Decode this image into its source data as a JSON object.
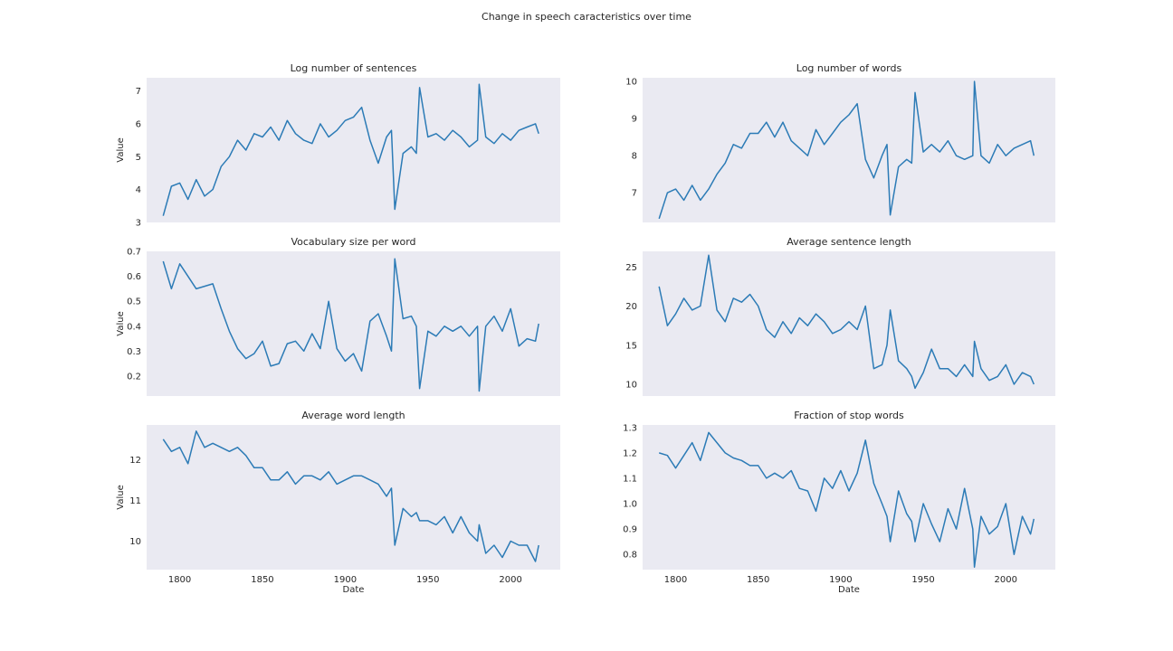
{
  "figure": {
    "suptitle": "Change in speech caracteristics over time",
    "colors": {
      "axes_bg": "#eaeaf2",
      "line": "#2c7bb6",
      "text": "#262626"
    }
  },
  "chart_data": [
    {
      "type": "line",
      "title": "Log number of sentences",
      "xlabel": "",
      "ylabel": "Value",
      "xlim": [
        1780,
        2030
      ],
      "ylim": [
        3,
        7.4
      ],
      "yticks": [
        3,
        4,
        5,
        6,
        7
      ],
      "yticklabels": [
        "3",
        "4",
        "5",
        "6",
        "7"
      ],
      "xticks": [
        1800,
        1850,
        1900,
        1950,
        2000
      ],
      "xticklabels": [],
      "grid": false,
      "x": [
        1790,
        1795,
        1800,
        1805,
        1810,
        1815,
        1820,
        1825,
        1830,
        1835,
        1840,
        1845,
        1850,
        1855,
        1860,
        1865,
        1870,
        1875,
        1880,
        1885,
        1890,
        1895,
        1900,
        1905,
        1910,
        1915,
        1920,
        1925,
        1928,
        1930,
        1935,
        1940,
        1943,
        1945,
        1950,
        1955,
        1960,
        1965,
        1970,
        1975,
        1980,
        1981,
        1985,
        1990,
        1995,
        2000,
        2005,
        2010,
        2015,
        2017
      ],
      "y": [
        3.2,
        4.1,
        4.2,
        3.7,
        4.3,
        3.8,
        4.0,
        4.7,
        5.0,
        5.5,
        5.2,
        5.7,
        5.6,
        5.9,
        5.5,
        6.1,
        5.7,
        5.5,
        5.4,
        6.0,
        5.6,
        5.8,
        6.1,
        6.2,
        6.5,
        5.5,
        4.8,
        5.6,
        5.8,
        3.4,
        5.1,
        5.3,
        5.1,
        7.1,
        5.6,
        5.7,
        5.5,
        5.8,
        5.6,
        5.3,
        5.5,
        7.2,
        5.6,
        5.4,
        5.7,
        5.5,
        5.8,
        5.9,
        6.0,
        5.7
      ]
    },
    {
      "type": "line",
      "title": "Log number of words",
      "xlabel": "",
      "ylabel": "",
      "xlim": [
        1780,
        2030
      ],
      "ylim": [
        6.2,
        10.1
      ],
      "yticks": [
        7,
        8,
        9,
        10
      ],
      "yticklabels": [
        "7",
        "8",
        "9",
        "10"
      ],
      "xticks": [
        1800,
        1850,
        1900,
        1950,
        2000
      ],
      "xticklabels": [],
      "grid": false,
      "x": [
        1790,
        1795,
        1800,
        1805,
        1810,
        1815,
        1820,
        1825,
        1830,
        1835,
        1840,
        1845,
        1850,
        1855,
        1860,
        1865,
        1870,
        1875,
        1880,
        1885,
        1890,
        1895,
        1900,
        1905,
        1910,
        1915,
        1920,
        1925,
        1928,
        1930,
        1935,
        1940,
        1943,
        1945,
        1950,
        1955,
        1960,
        1965,
        1970,
        1975,
        1980,
        1981,
        1985,
        1990,
        1995,
        2000,
        2005,
        2010,
        2015,
        2017
      ],
      "y": [
        6.3,
        7.0,
        7.1,
        6.8,
        7.2,
        6.8,
        7.1,
        7.5,
        7.8,
        8.3,
        8.2,
        8.6,
        8.6,
        8.9,
        8.5,
        8.9,
        8.4,
        8.2,
        8.0,
        8.7,
        8.3,
        8.6,
        8.9,
        9.1,
        9.4,
        7.9,
        7.4,
        8.0,
        8.3,
        6.4,
        7.7,
        7.9,
        7.8,
        9.7,
        8.1,
        8.3,
        8.1,
        8.4,
        8.0,
        7.9,
        8.0,
        10.0,
        8.0,
        7.8,
        8.3,
        8.0,
        8.2,
        8.3,
        8.4,
        8.0
      ]
    },
    {
      "type": "line",
      "title": "Vocabulary size per word",
      "xlabel": "",
      "ylabel": "Value",
      "xlim": [
        1780,
        2030
      ],
      "ylim": [
        0.12,
        0.7
      ],
      "yticks": [
        0.2,
        0.3,
        0.4,
        0.5,
        0.6,
        0.7
      ],
      "yticklabels": [
        "0.2",
        "0.3",
        "0.4",
        "0.5",
        "0.6",
        "0.7"
      ],
      "xticks": [
        1800,
        1850,
        1900,
        1950,
        2000
      ],
      "xticklabels": [],
      "grid": false,
      "x": [
        1790,
        1795,
        1800,
        1805,
        1810,
        1815,
        1820,
        1825,
        1830,
        1835,
        1840,
        1845,
        1850,
        1855,
        1860,
        1865,
        1870,
        1875,
        1880,
        1885,
        1890,
        1895,
        1900,
        1905,
        1910,
        1915,
        1920,
        1925,
        1928,
        1930,
        1935,
        1940,
        1943,
        1945,
        1950,
        1955,
        1960,
        1965,
        1970,
        1975,
        1980,
        1981,
        1985,
        1990,
        1995,
        2000,
        2005,
        2010,
        2015,
        2017
      ],
      "y": [
        0.66,
        0.55,
        0.65,
        0.6,
        0.55,
        0.56,
        0.57,
        0.47,
        0.38,
        0.31,
        0.27,
        0.29,
        0.34,
        0.24,
        0.25,
        0.33,
        0.34,
        0.3,
        0.37,
        0.31,
        0.5,
        0.31,
        0.26,
        0.29,
        0.22,
        0.42,
        0.45,
        0.36,
        0.3,
        0.67,
        0.43,
        0.44,
        0.4,
        0.15,
        0.38,
        0.36,
        0.4,
        0.38,
        0.4,
        0.36,
        0.4,
        0.14,
        0.4,
        0.44,
        0.38,
        0.47,
        0.32,
        0.35,
        0.34,
        0.41
      ]
    },
    {
      "type": "line",
      "title": "Average sentence length",
      "xlabel": "",
      "ylabel": "",
      "xlim": [
        1780,
        2030
      ],
      "ylim": [
        8.5,
        27
      ],
      "yticks": [
        10,
        15,
        20,
        25
      ],
      "yticklabels": [
        "10",
        "15",
        "20",
        "25"
      ],
      "xticks": [
        1800,
        1850,
        1900,
        1950,
        2000
      ],
      "xticklabels": [],
      "grid": false,
      "x": [
        1790,
        1795,
        1800,
        1805,
        1810,
        1815,
        1820,
        1825,
        1830,
        1835,
        1840,
        1845,
        1850,
        1855,
        1860,
        1865,
        1870,
        1875,
        1880,
        1885,
        1890,
        1895,
        1900,
        1905,
        1910,
        1915,
        1920,
        1925,
        1928,
        1930,
        1935,
        1940,
        1943,
        1945,
        1950,
        1955,
        1960,
        1965,
        1970,
        1975,
        1980,
        1981,
        1985,
        1990,
        1995,
        2000,
        2005,
        2010,
        2015,
        2017
      ],
      "y": [
        22.5,
        17.5,
        19.0,
        21.0,
        19.5,
        20.0,
        26.5,
        19.5,
        18.0,
        21.0,
        20.5,
        21.5,
        20.0,
        17.0,
        16.0,
        18.0,
        16.5,
        18.5,
        17.5,
        19.0,
        18.0,
        16.5,
        17.0,
        18.0,
        17.0,
        20.0,
        12.0,
        12.5,
        15.0,
        19.5,
        13.0,
        12.0,
        11.0,
        9.5,
        11.5,
        14.5,
        12.0,
        12.0,
        11.0,
        12.5,
        11.0,
        15.5,
        12.0,
        10.5,
        11.0,
        12.5,
        10.0,
        11.5,
        11.0,
        10.0
      ]
    },
    {
      "type": "line",
      "title": "Average word length",
      "xlabel": "Date",
      "ylabel": "Value",
      "xlim": [
        1780,
        2030
      ],
      "ylim": [
        9.3,
        12.85
      ],
      "yticks": [
        10,
        11,
        12
      ],
      "yticklabels": [
        "10",
        "11",
        "12"
      ],
      "xticks": [
        1800,
        1850,
        1900,
        1950,
        2000
      ],
      "xticklabels": [
        "1800",
        "1850",
        "1900",
        "1950",
        "2000"
      ],
      "grid": false,
      "x": [
        1790,
        1795,
        1800,
        1805,
        1810,
        1815,
        1820,
        1825,
        1830,
        1835,
        1840,
        1845,
        1850,
        1855,
        1860,
        1865,
        1870,
        1875,
        1880,
        1885,
        1890,
        1895,
        1900,
        1905,
        1910,
        1915,
        1920,
        1925,
        1928,
        1930,
        1935,
        1940,
        1943,
        1945,
        1950,
        1955,
        1960,
        1965,
        1970,
        1975,
        1980,
        1981,
        1985,
        1990,
        1995,
        2000,
        2005,
        2010,
        2015,
        2017
      ],
      "y": [
        12.5,
        12.2,
        12.3,
        11.9,
        12.7,
        12.3,
        12.4,
        12.3,
        12.2,
        12.3,
        12.1,
        11.8,
        11.8,
        11.5,
        11.5,
        11.7,
        11.4,
        11.6,
        11.6,
        11.5,
        11.7,
        11.4,
        11.5,
        11.6,
        11.6,
        11.5,
        11.4,
        11.1,
        11.3,
        9.9,
        10.8,
        10.6,
        10.7,
        10.5,
        10.5,
        10.4,
        10.6,
        10.2,
        10.6,
        10.2,
        10.0,
        10.4,
        9.7,
        9.9,
        9.6,
        10.0,
        9.9,
        9.9,
        9.5,
        9.9
      ]
    },
    {
      "type": "line",
      "title": "Fraction of stop words",
      "xlabel": "Date",
      "ylabel": "",
      "xlim": [
        1780,
        2030
      ],
      "ylim": [
        0.74,
        1.31
      ],
      "yticks": [
        0.8,
        0.9,
        1.0,
        1.1,
        1.2,
        1.3
      ],
      "yticklabels": [
        "0.8",
        "0.9",
        "1.0",
        "1.1",
        "1.2",
        "1.3"
      ],
      "xticks": [
        1800,
        1850,
        1900,
        1950,
        2000
      ],
      "xticklabels": [
        "1800",
        "1850",
        "1900",
        "1950",
        "2000"
      ],
      "grid": false,
      "x": [
        1790,
        1795,
        1800,
        1805,
        1810,
        1815,
        1820,
        1825,
        1830,
        1835,
        1840,
        1845,
        1850,
        1855,
        1860,
        1865,
        1870,
        1875,
        1880,
        1885,
        1890,
        1895,
        1900,
        1905,
        1910,
        1915,
        1920,
        1925,
        1928,
        1930,
        1935,
        1940,
        1943,
        1945,
        1950,
        1955,
        1960,
        1965,
        1970,
        1975,
        1980,
        1981,
        1985,
        1990,
        1995,
        2000,
        2005,
        2010,
        2015,
        2017
      ],
      "y": [
        1.2,
        1.19,
        1.14,
        1.19,
        1.24,
        1.17,
        1.28,
        1.24,
        1.2,
        1.18,
        1.17,
        1.15,
        1.15,
        1.1,
        1.12,
        1.1,
        1.13,
        1.06,
        1.05,
        0.97,
        1.1,
        1.06,
        1.13,
        1.05,
        1.12,
        1.25,
        1.08,
        1.0,
        0.95,
        0.85,
        1.05,
        0.96,
        0.93,
        0.85,
        1.0,
        0.92,
        0.85,
        0.98,
        0.9,
        1.06,
        0.9,
        0.75,
        0.95,
        0.88,
        0.91,
        1.0,
        0.8,
        0.95,
        0.88,
        0.94
      ]
    }
  ]
}
